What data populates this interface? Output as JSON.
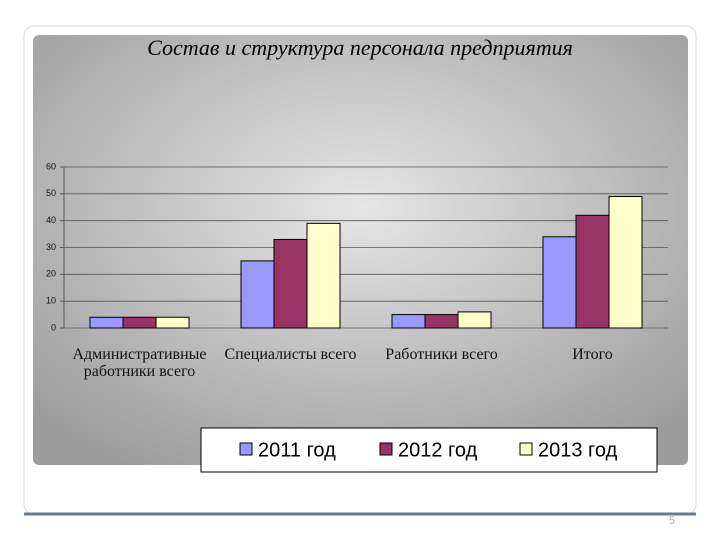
{
  "chart_data": {
    "type": "bar",
    "title": "Состав и структура персонала предприятия",
    "categories": [
      "Административные работники всего",
      "Специалисты всего",
      "Работники всего",
      "Итого"
    ],
    "series": [
      {
        "name": "2011 год",
        "color": "#9999ff",
        "values": [
          4,
          25,
          5,
          34
        ]
      },
      {
        "name": "2012 год",
        "color": "#993366",
        "values": [
          4,
          33,
          5,
          42
        ]
      },
      {
        "name": "2013 год",
        "color": "#ffffcc",
        "values": [
          4,
          39,
          6,
          49
        ]
      }
    ],
    "ylim": [
      0,
      60
    ],
    "yticks": [
      0,
      10,
      20,
      30,
      40,
      50,
      60
    ],
    "grid": true,
    "legend": "bottom"
  },
  "page_number": "5"
}
